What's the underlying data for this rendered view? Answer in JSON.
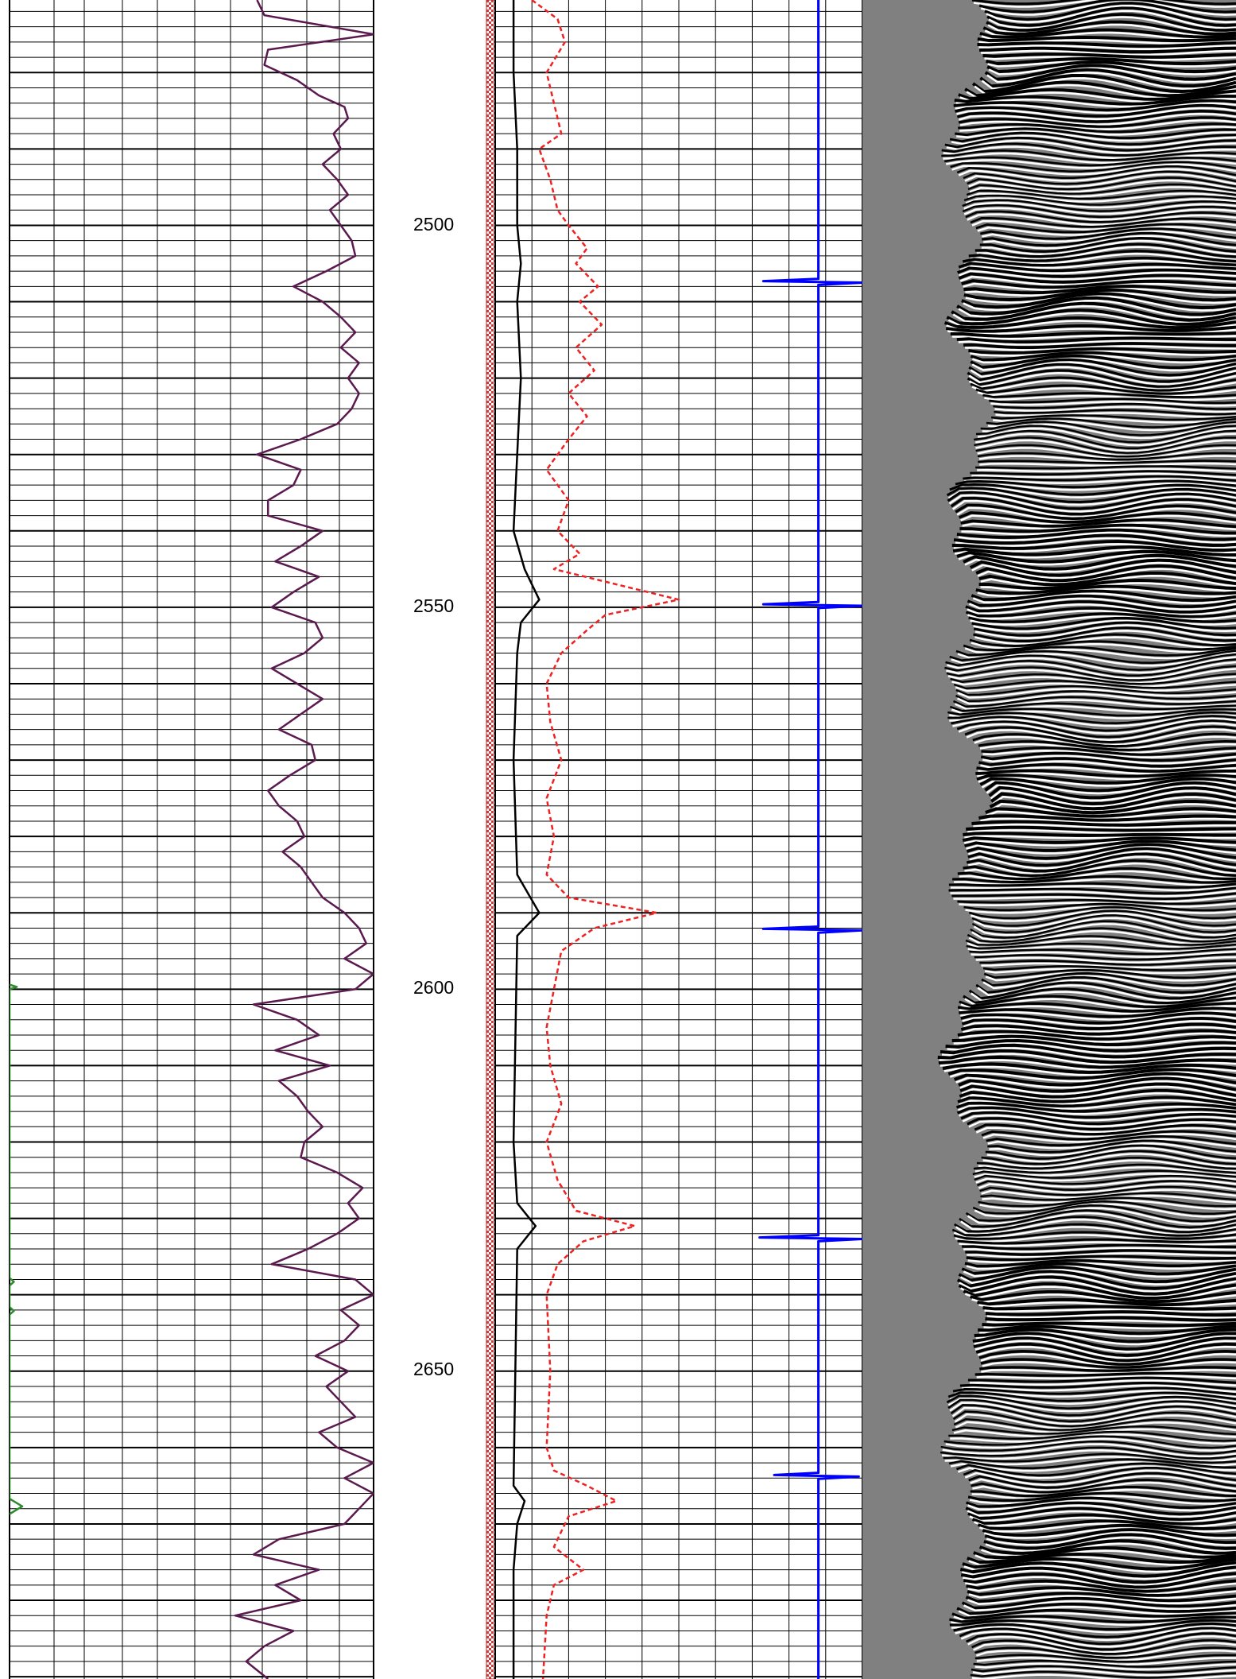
{
  "chart_data": {
    "type": "line",
    "y_axis": {
      "kind": "depth",
      "range": [
        2470.5,
        2690.3
      ],
      "tick_labels": [
        "2500",
        "2550",
        "2600",
        "2650"
      ],
      "major_step": 10,
      "minor_step": 2
    },
    "grid": true,
    "tracks": [
      {
        "id": "track-1",
        "grid": "log",
        "series": [
          {
            "color": "#5b1a4f",
            "style": "solid",
            "points": [
              [
                2470.5,
                0.68
              ],
              [
                2472.5,
                0.7
              ],
              [
                2475.0,
                1.0
              ],
              [
                2477.0,
                0.71
              ],
              [
                2479.0,
                0.7
              ],
              [
                2481.0,
                0.79
              ],
              [
                2483.0,
                0.85
              ],
              [
                2484.5,
                0.92
              ],
              [
                2486.0,
                0.93
              ],
              [
                2488.0,
                0.89
              ],
              [
                2490.0,
                0.91
              ],
              [
                2492.0,
                0.86
              ],
              [
                2494.0,
                0.9
              ],
              [
                2496.0,
                0.93
              ],
              [
                2498.0,
                0.88
              ],
              [
                2500.0,
                0.91
              ],
              [
                2502.0,
                0.94
              ],
              [
                2504.0,
                0.95
              ],
              [
                2506.0,
                0.87
              ],
              [
                2508.0,
                0.78
              ],
              [
                2510.0,
                0.86
              ],
              [
                2512.0,
                0.91
              ],
              [
                2514.0,
                0.95
              ],
              [
                2516.0,
                0.91
              ],
              [
                2518.0,
                0.96
              ],
              [
                2520.0,
                0.93
              ],
              [
                2522.0,
                0.96
              ],
              [
                2524.0,
                0.94
              ],
              [
                2526.0,
                0.9
              ],
              [
                2528.0,
                0.8
              ],
              [
                2530.0,
                0.68
              ],
              [
                2532.0,
                0.8
              ],
              [
                2534.0,
                0.78
              ],
              [
                2536.0,
                0.71
              ],
              [
                2538.0,
                0.71
              ],
              [
                2540.0,
                0.86
              ],
              [
                2542.0,
                0.8
              ],
              [
                2544.0,
                0.73
              ],
              [
                2546.0,
                0.85
              ],
              [
                2548.0,
                0.78
              ],
              [
                2550.0,
                0.72
              ],
              [
                2552.0,
                0.84
              ],
              [
                2554.0,
                0.86
              ],
              [
                2556.0,
                0.81
              ],
              [
                2558.0,
                0.72
              ],
              [
                2560.0,
                0.79
              ],
              [
                2562.0,
                0.86
              ],
              [
                2564.0,
                0.8
              ],
              [
                2566.0,
                0.74
              ],
              [
                2568.0,
                0.83
              ],
              [
                2570.0,
                0.84
              ],
              [
                2572.0,
                0.77
              ],
              [
                2574.0,
                0.71
              ],
              [
                2576.0,
                0.74
              ],
              [
                2578.0,
                0.79
              ],
              [
                2580.0,
                0.81
              ],
              [
                2582.0,
                0.75
              ],
              [
                2584.0,
                0.8
              ],
              [
                2586.0,
                0.83
              ],
              [
                2588.0,
                0.86
              ],
              [
                2590.0,
                0.92
              ],
              [
                2592.0,
                0.96
              ],
              [
                2594.0,
                0.98
              ],
              [
                2596.0,
                0.92
              ],
              [
                2598.0,
                1.0
              ],
              [
                2600.0,
                0.95
              ],
              [
                2602.0,
                0.67
              ],
              [
                2604.0,
                0.79
              ],
              [
                2606.0,
                0.85
              ],
              [
                2608.0,
                0.73
              ],
              [
                2610.0,
                0.88
              ],
              [
                2612.0,
                0.74
              ],
              [
                2614.0,
                0.79
              ],
              [
                2616.0,
                0.82
              ],
              [
                2618.0,
                0.86
              ],
              [
                2620.0,
                0.81
              ],
              [
                2622.0,
                0.8
              ],
              [
                2624.0,
                0.9
              ],
              [
                2626.0,
                0.97
              ],
              [
                2628.0,
                0.93
              ],
              [
                2630.0,
                0.96
              ],
              [
                2632.0,
                0.9
              ],
              [
                2634.0,
                0.82
              ],
              [
                2636.0,
                0.72
              ],
              [
                2638.0,
                0.95
              ],
              [
                2640.0,
                1.0
              ],
              [
                2642.0,
                0.91
              ],
              [
                2644.0,
                0.96
              ],
              [
                2646.0,
                0.92
              ],
              [
                2648.0,
                0.84
              ],
              [
                2650.0,
                0.93
              ],
              [
                2652.0,
                0.87
              ],
              [
                2654.0,
                0.91
              ],
              [
                2656.0,
                0.95
              ],
              [
                2658.0,
                0.85
              ],
              [
                2660.0,
                0.9
              ],
              [
                2662.0,
                1.0
              ],
              [
                2664.0,
                0.92
              ],
              [
                2666.0,
                1.0
              ],
              [
                2668.0,
                0.96
              ],
              [
                2670.0,
                0.92
              ],
              [
                2672.0,
                0.74
              ],
              [
                2674.0,
                0.67
              ],
              [
                2676.0,
                0.85
              ],
              [
                2678.0,
                0.73
              ],
              [
                2680.0,
                0.8
              ],
              [
                2682.0,
                0.62
              ],
              [
                2684.0,
                0.78
              ],
              [
                2686.0,
                0.7
              ],
              [
                2688.0,
                0.65
              ],
              [
                2690.3,
                0.71
              ]
            ]
          },
          {
            "color": "#2e8b2e",
            "style": "solid",
            "points": [
              [
                2599.4,
                0.0
              ],
              [
                2599.7,
                0.02
              ],
              [
                2600.0,
                0.0
              ],
              [
                2637.8,
                0.0
              ],
              [
                2638.3,
                0.012
              ],
              [
                2638.8,
                0.0
              ],
              [
                2641.6,
                0.0
              ],
              [
                2642.1,
                0.012
              ],
              [
                2642.6,
                0.0
              ],
              [
                2666.7,
                0.0
              ],
              [
                2667.7,
                0.035
              ],
              [
                2668.7,
                0.0
              ]
            ]
          }
        ]
      },
      {
        "id": "track-2",
        "grid": "linear",
        "series": [
          {
            "color": "#cc3333",
            "style": "pattern-band",
            "points": [
              [
                2470.5,
                0.0
              ],
              [
                2690.3,
                0.0
              ]
            ]
          },
          {
            "color": "#000000",
            "style": "solid",
            "points": [
              [
                2470.5,
                0.05
              ],
              [
                2480.0,
                0.05
              ],
              [
                2490.0,
                0.06
              ],
              [
                2500.0,
                0.06
              ],
              [
                2505.0,
                0.07
              ],
              [
                2510.0,
                0.06
              ],
              [
                2520.0,
                0.07
              ],
              [
                2530.0,
                0.06
              ],
              [
                2540.0,
                0.05
              ],
              [
                2545.0,
                0.08
              ],
              [
                2549.0,
                0.12
              ],
              [
                2552.0,
                0.07
              ],
              [
                2556.0,
                0.06
              ],
              [
                2570.0,
                0.05
              ],
              [
                2585.0,
                0.06
              ],
              [
                2590.0,
                0.12
              ],
              [
                2593.0,
                0.06
              ],
              [
                2620.0,
                0.05
              ],
              [
                2628.0,
                0.06
              ],
              [
                2631.0,
                0.11
              ],
              [
                2634.0,
                0.06
              ],
              [
                2665.0,
                0.05
              ],
              [
                2667.0,
                0.08
              ],
              [
                2670.0,
                0.06
              ],
              [
                2676.0,
                0.05
              ],
              [
                2690.3,
                0.05
              ]
            ]
          },
          {
            "color": "#ee2222",
            "style": "dashed",
            "points": [
              [
                2470.5,
                0.1
              ],
              [
                2473.0,
                0.17
              ],
              [
                2476.0,
                0.19
              ],
              [
                2480.0,
                0.14
              ],
              [
                2484.0,
                0.16
              ],
              [
                2488.0,
                0.18
              ],
              [
                2490.0,
                0.12
              ],
              [
                2494.0,
                0.15
              ],
              [
                2498.0,
                0.17
              ],
              [
                2500.0,
                0.2
              ],
              [
                2503.0,
                0.25
              ],
              [
                2505.0,
                0.22
              ],
              [
                2508.0,
                0.28
              ],
              [
                2510.0,
                0.23
              ],
              [
                2513.0,
                0.29
              ],
              [
                2516.0,
                0.22
              ],
              [
                2519.0,
                0.27
              ],
              [
                2522.0,
                0.2
              ],
              [
                2525.0,
                0.25
              ],
              [
                2528.0,
                0.2
              ],
              [
                2532.0,
                0.14
              ],
              [
                2536.0,
                0.2
              ],
              [
                2540.0,
                0.17
              ],
              [
                2543.0,
                0.23
              ],
              [
                2545.0,
                0.16
              ],
              [
                2547.0,
                0.33
              ],
              [
                2549.0,
                0.5
              ],
              [
                2551.0,
                0.3
              ],
              [
                2553.0,
                0.25
              ],
              [
                2556.0,
                0.18
              ],
              [
                2560.0,
                0.14
              ],
              [
                2565.0,
                0.15
              ],
              [
                2570.0,
                0.18
              ],
              [
                2575.0,
                0.14
              ],
              [
                2580.0,
                0.16
              ],
              [
                2585.0,
                0.14
              ],
              [
                2588.0,
                0.2
              ],
              [
                2590.0,
                0.44
              ],
              [
                2592.0,
                0.27
              ],
              [
                2595.0,
                0.18
              ],
              [
                2600.0,
                0.16
              ],
              [
                2605.0,
                0.14
              ],
              [
                2610.0,
                0.15
              ],
              [
                2615.0,
                0.18
              ],
              [
                2620.0,
                0.14
              ],
              [
                2625.0,
                0.17
              ],
              [
                2629.0,
                0.22
              ],
              [
                2631.0,
                0.38
              ],
              [
                2633.0,
                0.24
              ],
              [
                2636.0,
                0.17
              ],
              [
                2640.0,
                0.14
              ],
              [
                2650.0,
                0.15
              ],
              [
                2660.0,
                0.14
              ],
              [
                2663.0,
                0.16
              ],
              [
                2665.0,
                0.25
              ],
              [
                2667.0,
                0.33
              ],
              [
                2669.0,
                0.2
              ],
              [
                2673.0,
                0.16
              ],
              [
                2676.0,
                0.24
              ],
              [
                2678.0,
                0.16
              ],
              [
                2682.0,
                0.14
              ],
              [
                2690.3,
                0.13
              ]
            ]
          },
          {
            "color": "#0000ff",
            "style": "solid",
            "points": [
              [
                2470.5,
                0.88
              ],
              [
                2507.0,
                0.88
              ],
              [
                2507.3,
                0.73
              ],
              [
                2507.5,
                1.0
              ],
              [
                2507.8,
                0.88
              ],
              [
                2549.3,
                0.88
              ],
              [
                2549.6,
                0.73
              ],
              [
                2549.8,
                1.0
              ],
              [
                2550.1,
                0.88
              ],
              [
                2591.8,
                0.88
              ],
              [
                2592.1,
                0.73
              ],
              [
                2592.3,
                1.0
              ],
              [
                2592.6,
                0.88
              ],
              [
                2632.2,
                0.88
              ],
              [
                2632.5,
                0.72
              ],
              [
                2632.7,
                1.0
              ],
              [
                2633.0,
                0.88
              ],
              [
                2663.3,
                0.88
              ],
              [
                2663.6,
                0.76
              ],
              [
                2663.8,
                0.99
              ],
              [
                2664.1,
                0.88
              ],
              [
                2690.3,
                0.88
              ]
            ]
          }
        ]
      },
      {
        "id": "track-3",
        "type": "image",
        "background": "#808080"
      }
    ]
  }
}
